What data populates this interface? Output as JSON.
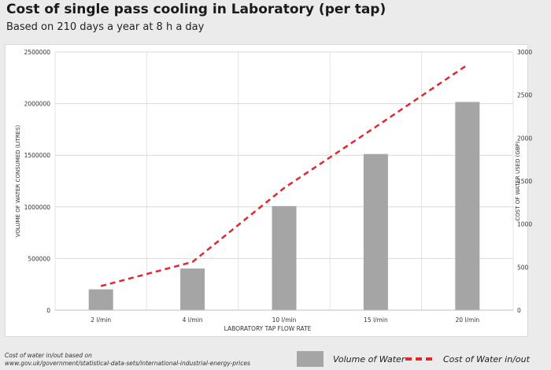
{
  "title": "Cost of single pass cooling in Laboratory (per tap)",
  "subtitle": "Based on 210 days a year at 8 h a day",
  "source_line1": "Cost of water in/out based on",
  "source_line2": "www.gov.uk/government/statistical-data-sets/international-industrial-energy-prices",
  "chart_data": {
    "type": "bar",
    "categories": [
      "2 l/min",
      "4 l/min",
      "10 l/min",
      "15 l/min",
      "20 l/min"
    ],
    "xlabel": "LABORATORY TAP FLOW RATE",
    "ylabel": "VOLUME OF WATER CONSUMED (LITRES)",
    "y2label": "COST OF WATER USED (GBP)",
    "ylim": [
      0,
      2500000
    ],
    "y2lim": [
      0,
      3000
    ],
    "yticks": [
      "0",
      "500000",
      "1000000",
      "1500000",
      "2000000",
      "2500000"
    ],
    "y2ticks": [
      "0",
      "500",
      "1000",
      "1500",
      "2000",
      "2500",
      "3000"
    ],
    "grid": true,
    "legend_position": "bottom-right",
    "series": [
      {
        "name": "Volume of Water",
        "type": "bar",
        "axis": "left",
        "color": "#a5a5a5",
        "values": [
          201600,
          403200,
          1008000,
          1512000,
          2016000
        ]
      },
      {
        "name": "Cost of Water in/out",
        "type": "line",
        "axis": "right",
        "style": "dashed",
        "color": "#e0282e",
        "values": [
          280,
          560,
          1420,
          2130,
          2850
        ]
      }
    ]
  }
}
